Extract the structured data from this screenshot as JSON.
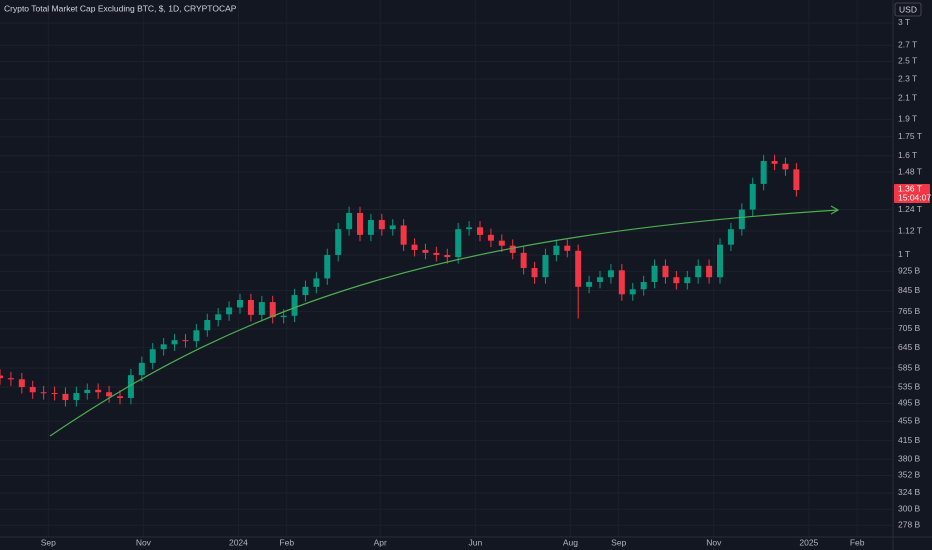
{
  "chart_data": {
    "type": "candlestick",
    "title": "Crypto Total Market Cap Excluding BTC, $, 1D, CRYPTOCAP",
    "currency": "USD",
    "x": [
      0,
      7,
      14,
      21,
      28,
      35,
      42,
      49,
      56,
      63,
      70,
      77,
      84,
      91,
      98,
      105,
      112,
      119,
      126,
      133,
      140,
      147,
      154,
      161,
      168,
      175,
      182,
      189,
      196,
      203,
      210,
      217,
      224,
      231,
      238,
      245,
      252,
      259,
      266,
      273,
      280,
      287,
      294,
      301,
      308,
      315,
      322,
      329,
      336,
      343,
      350,
      357,
      364,
      371,
      378,
      385,
      392,
      399,
      406,
      413,
      420,
      427,
      434,
      441,
      448,
      455,
      462,
      469,
      476,
      483,
      490,
      497,
      504,
      511
    ],
    "open": [
      565,
      558,
      555,
      535,
      522,
      520,
      518,
      503,
      520,
      528,
      522,
      512,
      508,
      566,
      600,
      640,
      655,
      668,
      665,
      700,
      735,
      755,
      780,
      808,
      753,
      800,
      745,
      750,
      827,
      860,
      895,
      1000,
      1130,
      1220,
      1100,
      1180,
      1130,
      1150,
      1050,
      1024,
      1010,
      1000,
      990,
      1130,
      1140,
      1100,
      1070,
      1045,
      1010,
      940,
      900,
      1000,
      1045,
      1020,
      860,
      880,
      900,
      930,
      830,
      850,
      880,
      950,
      900,
      875,
      900,
      950,
      900,
      1050,
      1130,
      1240,
      1400,
      1560,
      1540,
      1500
    ],
    "high": [
      582,
      575,
      572,
      551,
      538,
      536,
      534,
      536,
      544,
      544,
      538,
      527,
      583,
      618,
      659,
      675,
      688,
      688,
      721,
      757,
      778,
      803,
      832,
      832,
      824,
      824,
      773,
      852,
      886,
      922,
      1030,
      1164,
      1257,
      1257,
      1215,
      1215,
      1185,
      1185,
      1082,
      1055,
      1040,
      1030,
      1164,
      1174,
      1174,
      1133,
      1102,
      1076,
      1040,
      968,
      1030,
      1076,
      1076,
      1051,
      906,
      927,
      958,
      958,
      876,
      906,
      979,
      979,
      927,
      927,
      979,
      979,
      1082,
      1164,
      1277,
      1442,
      1607,
      1607,
      1586,
      1545
    ],
    "low": [
      541,
      538,
      519,
      506,
      504,
      502,
      488,
      488,
      504,
      506,
      497,
      493,
      493,
      549,
      582,
      621,
      635,
      645,
      645,
      679,
      713,
      732,
      757,
      730,
      730,
      723,
      723,
      728,
      802,
      834,
      868,
      970,
      1096,
      1067,
      1067,
      1096,
      1096,
      1019,
      993,
      980,
      970,
      960,
      960,
      1096,
      1067,
      1038,
      1014,
      980,
      912,
      873,
      873,
      970,
      989,
      740,
      834,
      854,
      873,
      805,
      805,
      825,
      854,
      873,
      849,
      849,
      873,
      873,
      873,
      1019,
      1096,
      1203,
      1358,
      1494,
      1455,
      1319
    ],
    "close": [
      558,
      555,
      535,
      522,
      520,
      518,
      503,
      520,
      528,
      522,
      512,
      508,
      566,
      600,
      640,
      655,
      668,
      665,
      700,
      735,
      755,
      780,
      808,
      753,
      800,
      745,
      750,
      827,
      860,
      895,
      1000,
      1130,
      1220,
      1100,
      1180,
      1130,
      1150,
      1050,
      1024,
      1010,
      1000,
      990,
      1130,
      1140,
      1100,
      1070,
      1045,
      1010,
      940,
      900,
      1000,
      1045,
      1020,
      860,
      880,
      900,
      930,
      830,
      850,
      880,
      950,
      900,
      875,
      900,
      950,
      900,
      1050,
      1130,
      1240,
      1400,
      1560,
      1540,
      1500,
      1360
    ],
    "up_color": "#089981",
    "down_color": "#f23645",
    "log_scale": true,
    "grid": true,
    "xlim": [
      0,
      573
    ],
    "xticks": [
      {
        "value": 31,
        "label": "Sep"
      },
      {
        "value": 92,
        "label": "Nov"
      },
      {
        "value": 153,
        "label": "2024"
      },
      {
        "value": 184,
        "label": "Feb"
      },
      {
        "value": 244,
        "label": "Apr"
      },
      {
        "value": 305,
        "label": "Jun"
      },
      {
        "value": 366,
        "label": "Aug"
      },
      {
        "value": 397,
        "label": "Sep"
      },
      {
        "value": 458,
        "label": "Nov"
      },
      {
        "value": 519,
        "label": "2025"
      },
      {
        "value": 550,
        "label": "Feb"
      }
    ],
    "ylim": [
      263,
      3345
    ],
    "yticks": [
      {
        "value": 3000,
        "label": "3 T"
      },
      {
        "value": 2700,
        "label": "2.7 T"
      },
      {
        "value": 2500,
        "label": "2.5 T"
      },
      {
        "value": 2300,
        "label": "2.3 T"
      },
      {
        "value": 2100,
        "label": "2.1 T"
      },
      {
        "value": 1900,
        "label": "1.9 T"
      },
      {
        "value": 1750,
        "label": "1.75 T"
      },
      {
        "value": 1600,
        "label": "1.6 T"
      },
      {
        "value": 1480,
        "label": "1.48 T"
      },
      {
        "value": 1240,
        "label": "1.24 T"
      },
      {
        "value": 1120,
        "label": "1.12 T"
      },
      {
        "value": 1000,
        "label": "1 T"
      },
      {
        "value": 925,
        "label": "925 B"
      },
      {
        "value": 845,
        "label": "845 B"
      },
      {
        "value": 765,
        "label": "765 B"
      },
      {
        "value": 705,
        "label": "705 B"
      },
      {
        "value": 645,
        "label": "645 B"
      },
      {
        "value": 585,
        "label": "585 B"
      },
      {
        "value": 535,
        "label": "535 B"
      },
      {
        "value": 495,
        "label": "495 B"
      },
      {
        "value": 455,
        "label": "455 B"
      },
      {
        "value": 415,
        "label": "415 B"
      },
      {
        "value": 380,
        "label": "380 B"
      },
      {
        "value": 352,
        "label": "352 B"
      },
      {
        "value": 324,
        "label": "324 B"
      },
      {
        "value": 300,
        "label": "300 B"
      },
      {
        "value": 278,
        "label": "278 B"
      }
    ],
    "last_price": {
      "value": 1360,
      "label": "1.36 T"
    },
    "countdown": "15:04:07"
  }
}
